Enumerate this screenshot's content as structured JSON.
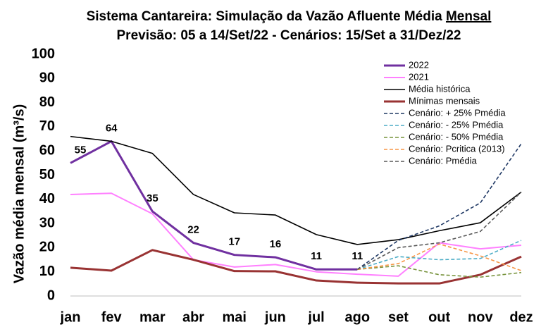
{
  "chart_data": {
    "type": "line",
    "title": "Sistema Cantareira: Simulação da Vazão Afluente Média",
    "title_emphasis": "Mensal",
    "subtitle": "Previsão: 05 a 14/Set/22 - Cenários: 15/Set a 31/Dez/22",
    "y_label": "Vazão média mensal (m³/s)",
    "categories": [
      "jan",
      "fev",
      "mar",
      "abr",
      "mai",
      "jun",
      "jul",
      "ago",
      "set",
      "out",
      "nov",
      "dez"
    ],
    "ylim": [
      0,
      100
    ],
    "yticks": [
      0,
      10,
      20,
      30,
      40,
      50,
      60,
      70,
      80,
      90,
      100
    ],
    "series": [
      {
        "name": "2022",
        "color": "#7030a0",
        "width": 3,
        "dash": false,
        "data_labels": true,
        "values": [
          55,
          64,
          35,
          22,
          17,
          16,
          11,
          11,
          null,
          null,
          null,
          null
        ]
      },
      {
        "name": "2021",
        "color": "#ff80ff",
        "width": 2,
        "dash": false,
        "values": [
          42,
          42.5,
          34,
          15,
          12,
          13,
          10,
          9,
          8.2,
          22,
          19.5,
          21
        ]
      },
      {
        "name": "Média histórica",
        "color": "#000000",
        "width": 1.6,
        "dash": false,
        "values": [
          66,
          64,
          59,
          42,
          34.4,
          33.5,
          25.4,
          21.3,
          23.3,
          27,
          30.3,
          43
        ]
      },
      {
        "name": "Mínimas mensais",
        "color": "#993333",
        "width": 3,
        "dash": false,
        "values": [
          11.7,
          10.5,
          19,
          15,
          10.3,
          10.2,
          6.4,
          5.5,
          5.2,
          5.2,
          8.8,
          16.3
        ]
      },
      {
        "name": "Cenário: + 25% Pmédia",
        "color": "#1f3864",
        "width": 1.6,
        "dash": true,
        "values": [
          null,
          null,
          null,
          null,
          null,
          null,
          null,
          11,
          23,
          29,
          38.5,
          63
        ]
      },
      {
        "name": "Cenário: - 25% Pmédia",
        "color": "#4bacc6",
        "width": 1.6,
        "dash": true,
        "values": [
          null,
          null,
          null,
          null,
          null,
          null,
          null,
          11,
          16.3,
          15,
          15.5,
          23
        ]
      },
      {
        "name": "Cenário: - 50% Pmédia",
        "color": "#77933c",
        "width": 1.6,
        "dash": true,
        "values": [
          null,
          null,
          null,
          null,
          null,
          null,
          null,
          11,
          12.5,
          8.8,
          7.8,
          9.7
        ]
      },
      {
        "name": "Cenário: Pcritica (2013)",
        "color": "#f79646",
        "width": 1.6,
        "dash": true,
        "values": [
          null,
          null,
          null,
          null,
          null,
          null,
          null,
          11,
          13.4,
          21.5,
          16.6,
          10.5
        ]
      },
      {
        "name": "Cenário: Pmédia",
        "color": "#595959",
        "width": 1.6,
        "dash": true,
        "values": [
          null,
          null,
          null,
          null,
          null,
          null,
          null,
          11,
          20,
          22,
          26.7,
          43
        ]
      }
    ]
  }
}
